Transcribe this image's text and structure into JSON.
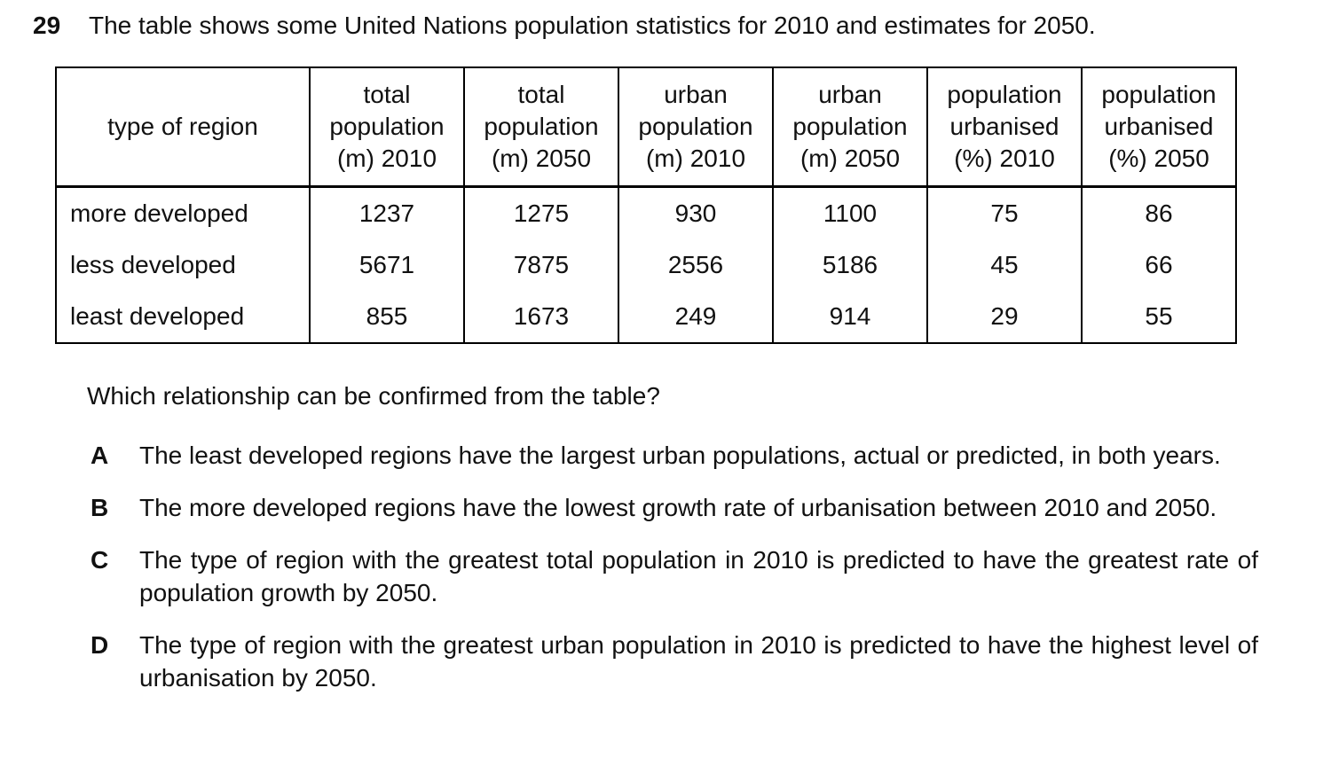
{
  "question": {
    "number": "29",
    "intro": "The table shows some United Nations population statistics for 2010 and estimates for 2050.",
    "stem": "Which relationship can be confirmed from the table?"
  },
  "table": {
    "headers": [
      "type of region",
      "total\npopulation\n(m) 2010",
      "total\npopulation\n(m) 2050",
      "urban\npopulation\n(m) 2010",
      "urban\npopulation\n(m) 2050",
      "population\nurbanised\n(%) 2010",
      "population\nurbanised\n(%) 2050"
    ],
    "rows": [
      {
        "region": "more developed",
        "values": [
          "1237",
          "1275",
          "930",
          "1100",
          "75",
          "86"
        ]
      },
      {
        "region": "less developed",
        "values": [
          "5671",
          "7875",
          "2556",
          "5186",
          "45",
          "66"
        ]
      },
      {
        "region": "least developed",
        "values": [
          "855",
          "1673",
          "249",
          "914",
          "29",
          "55"
        ]
      }
    ]
  },
  "options": [
    {
      "letter": "A",
      "text": "The least developed regions have the largest urban populations, actual or predicted, in both years."
    },
    {
      "letter": "B",
      "text": "The more developed regions have the lowest growth rate of urbanisation between 2010 and 2050."
    },
    {
      "letter": "C",
      "text": "The type of region with the greatest total population in 2010 is predicted to have the greatest rate of population growth by 2050."
    },
    {
      "letter": "D",
      "text": "The type of region with the greatest urban population in 2010 is predicted to have the highest level of urbanisation by 2050."
    }
  ],
  "colors": {
    "text": "#111111",
    "border": "#000000",
    "background": "#ffffff"
  }
}
